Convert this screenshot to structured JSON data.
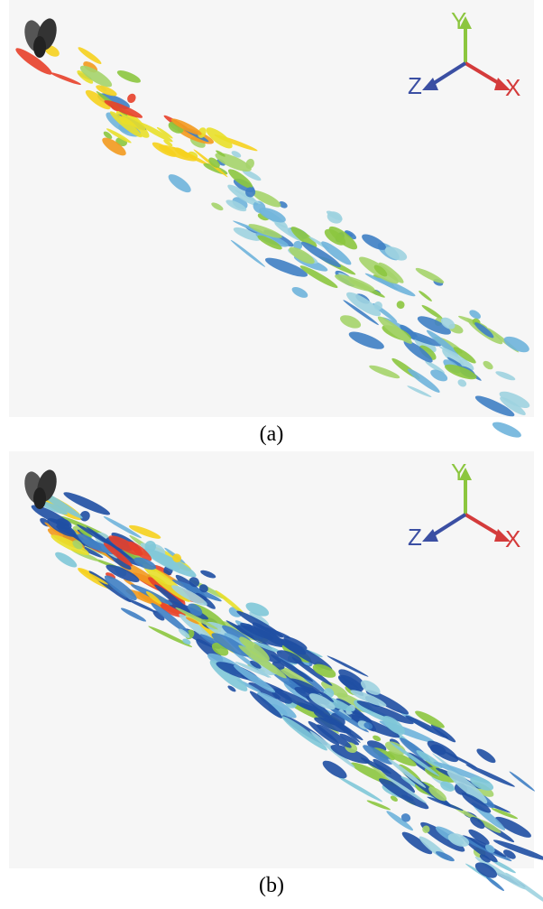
{
  "panels": [
    {
      "caption": "(a)",
      "axes": {
        "y": "Y",
        "z": "Z",
        "x": "X"
      }
    },
    {
      "caption": "(b)",
      "axes": {
        "y": "Y",
        "z": "Z",
        "x": "X"
      }
    }
  ]
}
